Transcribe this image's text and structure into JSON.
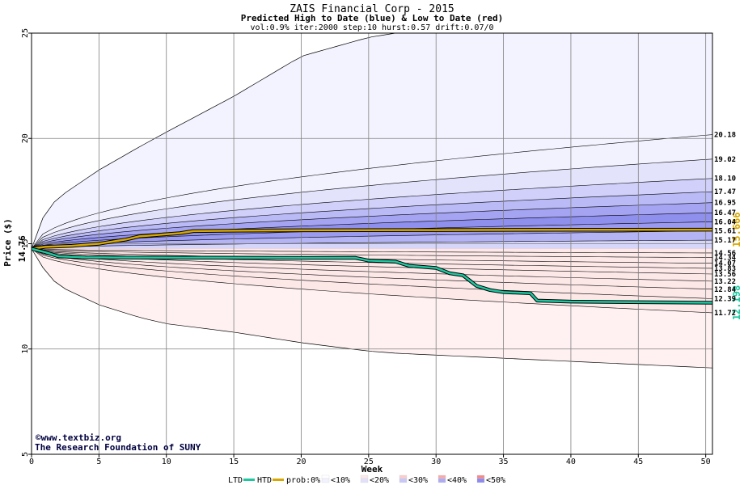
{
  "chart_data": {
    "type": "area",
    "title": "ZAIS Financial Corp - 2015",
    "subtitle": "Predicted High to Date (blue) &  Low to Date (red)",
    "params": "vol:0.9% iter:2000 step:10 hurst:0.57 drift:0.07/0",
    "xlabel": "Week",
    "ylabel": "Price ($)",
    "xlim": [
      0,
      50.5
    ],
    "ylim": [
      5,
      25
    ],
    "x_ticks": [
      0,
      5,
      10,
      15,
      20,
      25,
      30,
      35,
      40,
      45,
      50
    ],
    "y_ticks": [
      5,
      10,
      15,
      20,
      25
    ],
    "start_price": 14.76,
    "start_price_label": "14.76",
    "grid": true,
    "outer_band": {
      "x": [
        0,
        1,
        2,
        5,
        8,
        10,
        15,
        20,
        25,
        27,
        50.5
      ],
      "upper": [
        14.76,
        16.5,
        17.2,
        18.5,
        19.6,
        20.3,
        22.0,
        23.9,
        24.8,
        25.0,
        25.0
      ],
      "lower": [
        14.76,
        13.7,
        13.0,
        12.1,
        11.5,
        11.2,
        10.8,
        10.3,
        9.9,
        9.8,
        9.1
      ]
    },
    "high_bands": [
      {
        "label": "20.18",
        "value": 20.18,
        "fill": "#f2f2ff"
      },
      {
        "label": "19.02",
        "value": 19.02,
        "fill": "#e3e3fc"
      },
      {
        "label": "18.10",
        "value": 18.1,
        "fill": "#d0d0fa"
      },
      {
        "label": "17.47",
        "value": 17.47,
        "fill": "#babaf6"
      },
      {
        "label": "16.95",
        "value": 16.95,
        "fill": "#a4a4f2"
      },
      {
        "label": "16.47",
        "value": 16.47,
        "fill": "#8f8fee"
      },
      {
        "label": "16.04",
        "value": 16.04,
        "fill": "#9a9af0"
      },
      {
        "label": "15.61",
        "value": 15.61,
        "fill": "#b4b4f5"
      },
      {
        "label": "15.17",
        "value": 15.17,
        "fill": "#d6d6fb"
      }
    ],
    "low_bands": [
      {
        "label": "14.56",
        "value": 14.56,
        "fill": "#fde0e0"
      },
      {
        "label": "14.34",
        "value": 14.34,
        "fill": "#fbcece"
      },
      {
        "label": "14.07",
        "value": 14.07,
        "fill": "#f8b8b8"
      },
      {
        "label": "13.83",
        "value": 13.83,
        "fill": "#f6a3a3"
      },
      {
        "label": "13.56",
        "value": 13.56,
        "fill": "#f39090"
      },
      {
        "label": "13.22",
        "value": 13.22,
        "fill": "#f29a9a"
      },
      {
        "label": "12.84",
        "value": 12.84,
        "fill": "#f5b3b3"
      },
      {
        "label": "12.39",
        "value": 12.39,
        "fill": "#f9cfcf"
      },
      {
        "label": "11.72",
        "value": 11.72,
        "fill": "#fde8e8"
      }
    ],
    "series": [
      {
        "name": "HTD",
        "color": "#d8a800",
        "end_label": "15.666",
        "x": [
          0,
          1,
          3,
          4,
          5,
          6,
          7,
          8,
          9,
          10,
          11,
          12,
          15,
          20,
          30,
          40,
          50.5
        ],
        "y": [
          14.76,
          14.85,
          14.9,
          14.95,
          15.0,
          15.1,
          15.2,
          15.35,
          15.4,
          15.45,
          15.5,
          15.6,
          15.62,
          15.64,
          15.65,
          15.66,
          15.666
        ]
      },
      {
        "name": "LTD",
        "color": "#1dc8a0",
        "end_label": "12.198",
        "x": [
          0,
          1,
          2,
          4,
          10,
          20,
          24,
          25,
          27,
          28,
          30,
          31,
          32,
          33,
          34,
          35,
          37,
          37.5,
          40,
          50.5
        ],
        "y": [
          14.76,
          14.6,
          14.4,
          14.35,
          14.34,
          14.33,
          14.33,
          14.2,
          14.15,
          13.95,
          13.85,
          13.6,
          13.5,
          13.0,
          12.8,
          12.7,
          12.65,
          12.3,
          12.25,
          12.198
        ]
      }
    ],
    "legend": {
      "placement": "bottom",
      "ltd": "LTD",
      "htd": "HTD",
      "prob_label": "prob:0%",
      "items": [
        {
          "label": "<10%",
          "fill": "#ffffff"
        },
        {
          "label": "<20%",
          "fill": "#fde8e8"
        },
        {
          "label": "<30%",
          "fill": "#f9cdcd"
        },
        {
          "label": "<40%",
          "fill": "#f5abab"
        },
        {
          "label": "<50%",
          "fill": "#f28a8a"
        }
      ],
      "blue_swatches": [
        "#f2f2ff",
        "#e1e1fb",
        "#c8c8f8",
        "#acacf3",
        "#8a8aef"
      ]
    },
    "watermark": {
      "line1": "www.textbiz.org",
      "line2": "The Research Foundation of SUNY"
    }
  }
}
